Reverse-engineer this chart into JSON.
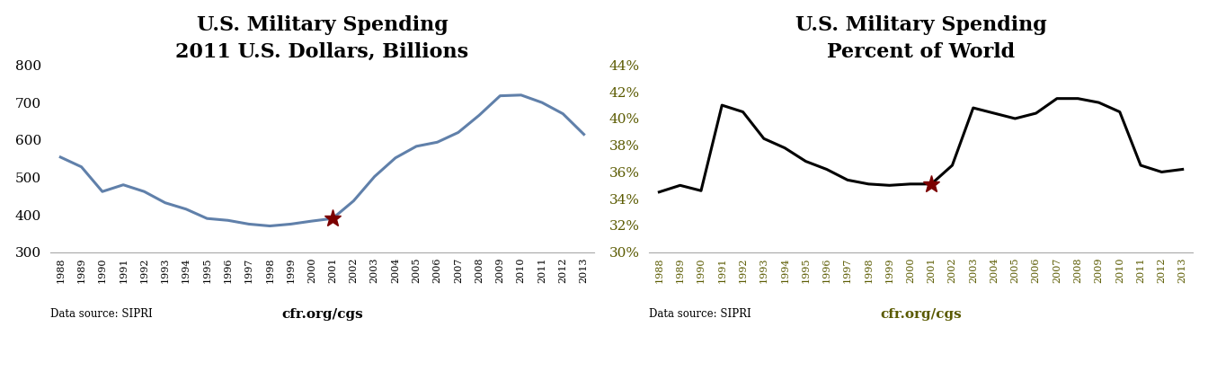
{
  "years": [
    1988,
    1989,
    1990,
    1991,
    1992,
    1993,
    1994,
    1995,
    1996,
    1997,
    1998,
    1999,
    2000,
    2001,
    2002,
    2003,
    2004,
    2005,
    2006,
    2007,
    2008,
    2009,
    2010,
    2011,
    2012,
    2013
  ],
  "spending_billions": [
    554,
    528,
    462,
    480,
    462,
    432,
    415,
    390,
    385,
    375,
    370,
    375,
    383,
    390,
    437,
    502,
    552,
    583,
    594,
    620,
    666,
    718,
    720,
    700,
    670,
    615
  ],
  "spending_percent": [
    34.5,
    35.0,
    34.6,
    41.0,
    40.5,
    38.5,
    37.8,
    36.8,
    36.2,
    35.4,
    35.1,
    35.0,
    35.1,
    35.1,
    36.5,
    40.8,
    40.4,
    40.0,
    40.4,
    41.5,
    41.5,
    41.2,
    40.5,
    36.5,
    36.0,
    36.2
  ],
  "star_year_1": 2001,
  "star_value_1": 390,
  "star_year_2": 2001,
  "star_value_2": 35.1,
  "title1": "U.S. Military Spending",
  "subtitle1": "2011 U.S. Dollars, Billions",
  "title2": "U.S. Military Spending",
  "subtitle2": "Percent of World",
  "line_color1": "#6080aa",
  "line_color2": "#000000",
  "star_color": "#7b0000",
  "ytick_color2": "#5a5a00",
  "xtick_color2": "#5a5a00",
  "cfr_color2": "#5a5a00",
  "source_text": "Data source: SIPRI",
  "cfr_text": "cfr.org/cgs",
  "ylim1": [
    300,
    800
  ],
  "yticks1": [
    300,
    400,
    500,
    600,
    700,
    800
  ],
  "ylim2": [
    30,
    44
  ],
  "yticks2": [
    30,
    32,
    34,
    36,
    38,
    40,
    42,
    44
  ],
  "bg_color": "#ffffff"
}
